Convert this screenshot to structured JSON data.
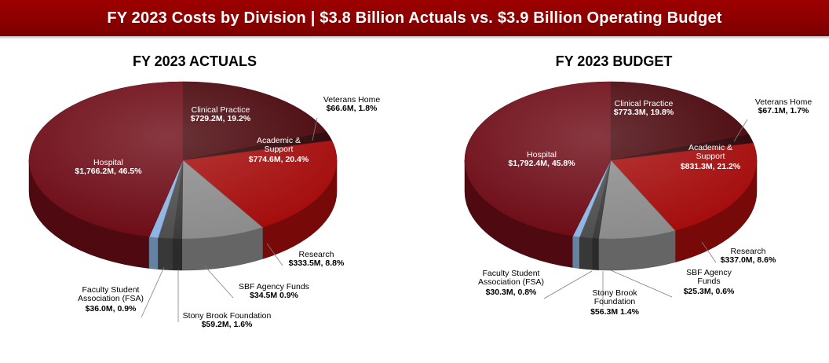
{
  "header": {
    "title": "FY 2023 Costs by Division | $3.8 Billion Actuals vs. $3.9 Billion Operating Budget",
    "color": "#8b0000"
  },
  "chart_data": [
    {
      "type": "pie",
      "style": "3d",
      "title": "FY 2023 ACTUALS",
      "slices": [
        {
          "name": "Clinical Practice",
          "value": 729.2,
          "label": "$729.2M, 19.2%",
          "color": "#4a070c"
        },
        {
          "name": "Veterans Home",
          "value": 66.6,
          "label": "$66.6M, 1.8%",
          "color": "#2b0406"
        },
        {
          "name": "Academic & Support",
          "value": 774.6,
          "label": "$774.6M, 20.4%",
          "color": "#a50d0d"
        },
        {
          "name": "Research",
          "value": 333.5,
          "label": "$333.5M, 8.8%",
          "color": "#8c8c8c"
        },
        {
          "name": "SBF Agency Funds",
          "value": 34.5,
          "label": "$34.5M 0.9%",
          "color": "#3c3c3c"
        },
        {
          "name": "Stony Brook Foundation",
          "value": 59.2,
          "label": "$59.2M, 1.6%",
          "color": "#4e4e4e"
        },
        {
          "name": "Faculty Student Association (FSA)",
          "value": 36.0,
          "label": "$36.0M, 0.9%",
          "color": "#8eb4e3"
        },
        {
          "name": "Hospital",
          "value": 1766.2,
          "label": "$1,766.2M, 46.5%",
          "color": "#6e0c17"
        }
      ]
    },
    {
      "type": "pie",
      "style": "3d",
      "title": "FY 2023 BUDGET",
      "slices": [
        {
          "name": "Clinical Practice",
          "value": 773.3,
          "label": "$773.3M, 19.8%",
          "color": "#4a070c"
        },
        {
          "name": "Veterans Home",
          "value": 67.1,
          "label": "$67.1M, 1.7%",
          "color": "#2b0406"
        },
        {
          "name": "Academic & Support",
          "value": 831.3,
          "label": "$831.3M, 21.2%",
          "color": "#a50d0d"
        },
        {
          "name": "Research",
          "value": 337.0,
          "label": "$337.0M, 8.6%",
          "color": "#8c8c8c"
        },
        {
          "name": "SBF Agency Funds",
          "value": 25.3,
          "label": "$25.3M, 0.6%",
          "color": "#3c3c3c"
        },
        {
          "name": "Stony Brook Foundation",
          "value": 56.3,
          "label": "$56.3M 1.4%",
          "color": "#4e4e4e"
        },
        {
          "name": "Faculty Student Association (FSA)",
          "value": 30.3,
          "label": "$30.3M, 0.8%",
          "color": "#8eb4e3"
        },
        {
          "name": "Hospital",
          "value": 1792.4,
          "label": "$1,792.4M, 45.8%",
          "color": "#6e0c17"
        }
      ]
    }
  ]
}
